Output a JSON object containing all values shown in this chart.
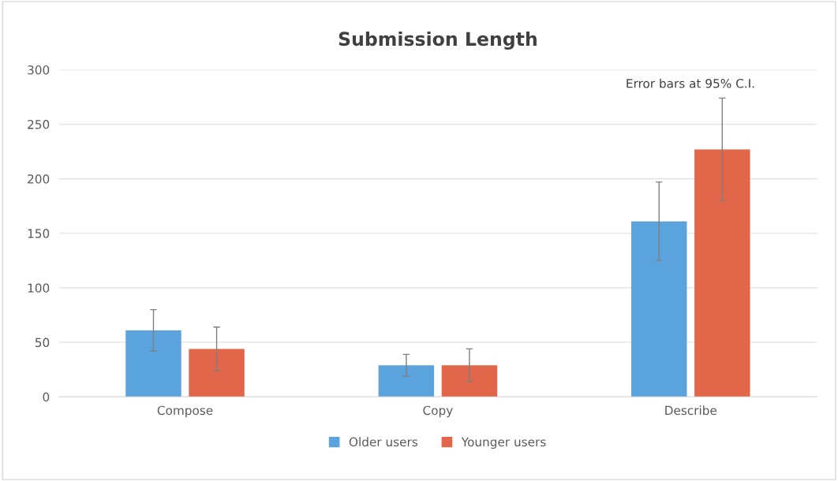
{
  "chart_data": {
    "type": "bar",
    "title": "Submission Length",
    "categories": [
      "Compose",
      "Copy",
      "Describe"
    ],
    "series": [
      {
        "name": "Older users",
        "color": "#5ba3dc",
        "values": [
          61,
          29,
          161
        ],
        "errors": [
          19,
          10,
          36
        ]
      },
      {
        "name": "Younger users",
        "color": "#e2674a",
        "values": [
          44,
          29,
          227
        ],
        "errors": [
          20,
          15,
          47
        ]
      }
    ],
    "ylim": [
      0,
      300
    ],
    "yticks": [
      0,
      50,
      100,
      150,
      200,
      250,
      300
    ],
    "grid": "y",
    "legend": "bottom",
    "annotations": [
      "Error bars at 95% C.I."
    ]
  }
}
